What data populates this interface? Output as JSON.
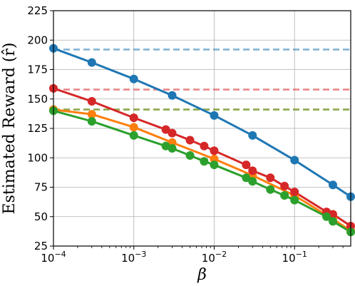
{
  "chart_data": {
    "type": "line",
    "title": "",
    "xlabel": "β",
    "ylabel": "Estimated Reward (r̂)",
    "x_scale": "log",
    "xlim": [
      0.0001,
      0.5
    ],
    "ylim": [
      25,
      225
    ],
    "grid": true,
    "x_ticks": [
      {
        "value": 0.0001,
        "base": "10",
        "exp": "−4"
      },
      {
        "value": 0.001,
        "base": "10",
        "exp": "−3"
      },
      {
        "value": 0.01,
        "base": "10",
        "exp": "−2"
      },
      {
        "value": 0.1,
        "base": "10",
        "exp": "−1"
      }
    ],
    "y_ticks": [
      25,
      50,
      75,
      100,
      125,
      150,
      175,
      200,
      225
    ],
    "series": [
      {
        "color": "#1f77b4",
        "x": [
          0.0001,
          0.0003,
          0.001,
          0.003,
          0.01,
          0.03,
          0.1,
          0.3,
          0.5
        ],
        "y": [
          193,
          181,
          167,
          153,
          136,
          119,
          98,
          77,
          67
        ]
      },
      {
        "color": "#ff7f0e",
        "x": [
          0.0001,
          0.0003,
          0.001,
          0.003,
          0.01,
          0.03,
          0.1,
          0.3,
          0.5
        ],
        "y": [
          141,
          137,
          126,
          113,
          99,
          85,
          68,
          48,
          38
        ]
      },
      {
        "color": "#d62728",
        "x": [
          0.0001,
          0.0003,
          0.001,
          0.0025,
          0.003,
          0.005,
          0.0075,
          0.01,
          0.025,
          0.03,
          0.05,
          0.075,
          0.1,
          0.25,
          0.3,
          0.5
        ],
        "y": [
          159,
          148,
          134,
          124,
          121,
          115,
          110,
          106,
          94,
          89,
          83,
          76,
          71,
          54,
          52,
          42
        ]
      },
      {
        "color": "#2ca02c",
        "x": [
          0.0001,
          0.0003,
          0.001,
          0.0025,
          0.003,
          0.005,
          0.0075,
          0.01,
          0.025,
          0.03,
          0.05,
          0.075,
          0.1,
          0.25,
          0.3,
          0.5
        ],
        "y": [
          140,
          131,
          119,
          110,
          108,
          102,
          97,
          94,
          83,
          80,
          73,
          68,
          64,
          50,
          46,
          37
        ]
      }
    ],
    "reference_lines": [
      {
        "y": 192,
        "color": "#1f77b4"
      },
      {
        "y": 158,
        "color": "#d62728"
      },
      {
        "y": 141,
        "color": "#ff7f0e"
      },
      {
        "y": 141,
        "color": "#2ca02c"
      }
    ]
  }
}
